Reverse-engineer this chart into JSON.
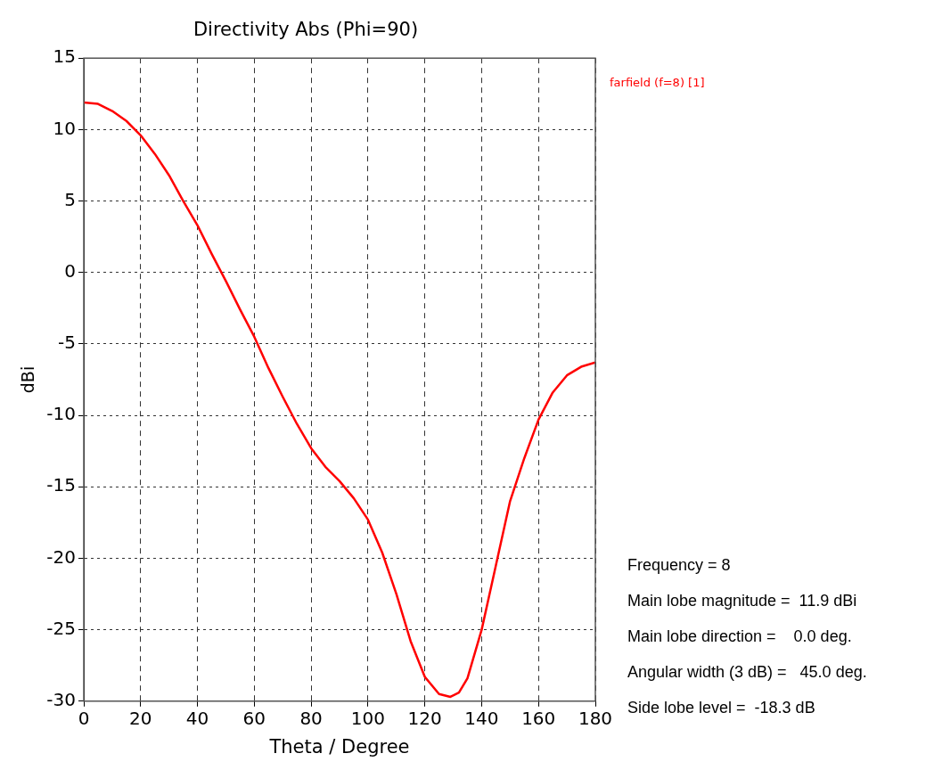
{
  "chart_data": {
    "type": "line",
    "title": "Directivity Abs (Phi=90)",
    "xlabel": "Theta / Degree",
    "ylabel": "dBi",
    "x": [
      0,
      5,
      10,
      15,
      20,
      25,
      30,
      35,
      40,
      45,
      50,
      55,
      60,
      65,
      70,
      75,
      80,
      85,
      90,
      95,
      100,
      105,
      110,
      115,
      120,
      125,
      129,
      132,
      135,
      140,
      145,
      150,
      155,
      160,
      165,
      170,
      175,
      180
    ],
    "series": [
      {
        "name": "farfield (f=8) [1]",
        "color": "#ff0000",
        "values": [
          11.9,
          11.8,
          11.3,
          10.6,
          9.6,
          8.3,
          6.8,
          5.0,
          3.3,
          1.3,
          -0.6,
          -2.6,
          -4.5,
          -6.7,
          -8.7,
          -10.6,
          -12.3,
          -13.6,
          -14.6,
          -15.8,
          -17.3,
          -19.6,
          -22.5,
          -25.8,
          -28.3,
          -29.5,
          -29.7,
          -29.4,
          -28.4,
          -25.0,
          -20.5,
          -16.0,
          -13.0,
          -10.3,
          -8.4,
          -7.2,
          -6.6,
          -6.3
        ]
      }
    ],
    "xlim": [
      0,
      180
    ],
    "xticks": [
      0,
      20,
      40,
      60,
      80,
      100,
      120,
      140,
      160,
      180
    ],
    "ylim": [
      -30,
      15
    ],
    "yticks": [
      -30,
      -25,
      -20,
      -15,
      -10,
      -5,
      0,
      5,
      10,
      15
    ],
    "grid": true,
    "legend": "top right",
    "line_style": "solid",
    "marker": "none",
    "annotations": [
      "Frequency = 8",
      "Main lobe magnitude =  11.9 dBi",
      "Main lobe direction =    0.0 deg.",
      "Angular width (3 dB) =   45.0 deg.",
      "Side lobe level =  -18.3 dB"
    ]
  }
}
